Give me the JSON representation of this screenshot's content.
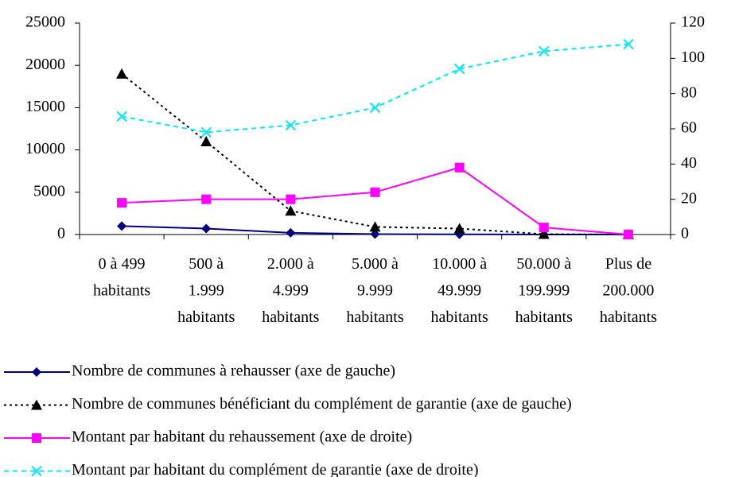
{
  "chart_data": {
    "type": "line",
    "categories": [
      "0 à 499\nhabitants",
      "500 à\n1.999\nhabitants",
      "2.000 à\n4.999\nhabitants",
      "5.000 à\n9.999\nhabitants",
      "10.000 à\n49.999\nhabitants",
      "50.000 à\n199.999\nhabitants",
      "Plus de\n200.000\nhabitants"
    ],
    "ylim": [
      0,
      25000
    ],
    "yticks": [
      0,
      5000,
      10000,
      15000,
      20000,
      25000
    ],
    "y2lim": [
      0,
      120
    ],
    "y2ticks": [
      0,
      20,
      40,
      60,
      80,
      100,
      120
    ],
    "grid": false,
    "legend": "bottom",
    "series": [
      {
        "name": "Nombre de communes à rehausser (axe de gauche)",
        "color": "#000080",
        "marker": "diamond",
        "dash": "solid",
        "axis": "y",
        "values": [
          1000,
          700,
          200,
          50,
          20,
          0,
          0
        ]
      },
      {
        "name": "Nombre de communes bénéficiant du complément de garantie (axe de gauche)",
        "color": "#000000",
        "marker": "triangle",
        "dash": "dotted",
        "axis": "y",
        "values": [
          19000,
          11000,
          2800,
          900,
          700,
          50,
          0
        ]
      },
      {
        "name": "Montant par habitant du rehaussement (axe de droite)",
        "color": "#ff00ff",
        "marker": "square",
        "dash": "solid",
        "axis": "y2",
        "values": [
          18,
          20,
          20,
          24,
          38,
          4,
          0
        ]
      },
      {
        "name": "Montant par habitant du complément de garantie (axe de droite)",
        "color": "#00e8ff",
        "marker": "x",
        "dash": "dashed",
        "axis": "y2",
        "values": [
          67,
          58,
          62,
          72,
          94,
          104,
          108
        ]
      }
    ]
  }
}
